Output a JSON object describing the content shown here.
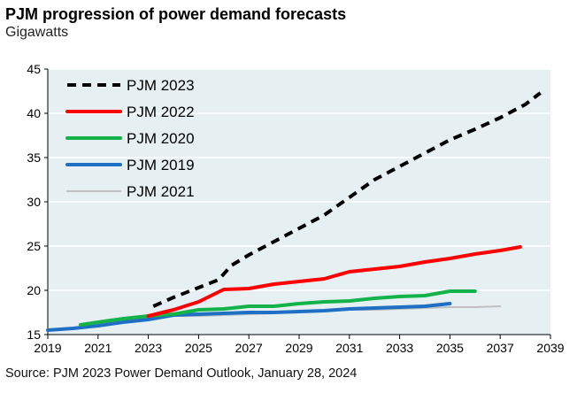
{
  "chart_data": {
    "type": "line",
    "title": "PJM progression of power demand forecasts",
    "subtitle": "Gigawatts",
    "source": "Source: PJM 2023 Power Demand Outlook, January 28, 2024",
    "xlabel": "",
    "ylabel": "Gigawatts",
    "xlim": [
      2019,
      2039
    ],
    "ylim": [
      15,
      45
    ],
    "xticks": [
      2019,
      2021,
      2023,
      2025,
      2027,
      2029,
      2031,
      2033,
      2035,
      2037,
      2039
    ],
    "yticks": [
      15,
      20,
      25,
      30,
      35,
      40,
      45
    ],
    "grid": true,
    "legend_position": "top-left",
    "background": "#e6f0f3",
    "series": [
      {
        "name": "PJM 2023",
        "color": "#000000",
        "dashed": true,
        "x": [
          2023.2,
          2024,
          2025,
          2025.8,
          2026.3,
          2027,
          2028,
          2029,
          2030,
          2031,
          2032,
          2033,
          2034,
          2035,
          2036,
          2037,
          2038,
          2038.6
        ],
        "y": [
          18.2,
          19.2,
          20.3,
          21.2,
          22.8,
          24,
          25.5,
          27,
          28.5,
          30.5,
          32.5,
          34,
          35.5,
          37,
          38.2,
          39.5,
          41,
          42.3
        ]
      },
      {
        "name": "PJM 2022",
        "color": "#ff0000",
        "x": [
          2023,
          2024,
          2025,
          2026,
          2027,
          2028,
          2029,
          2030,
          2031,
          2032,
          2033,
          2034,
          2035,
          2036,
          2037,
          2037.8
        ],
        "y": [
          17.1,
          17.8,
          18.7,
          20.1,
          20.2,
          20.7,
          21,
          21.3,
          22.1,
          22.4,
          22.7,
          23.2,
          23.6,
          24.1,
          24.5,
          24.9
        ]
      },
      {
        "name": "PJM 2020",
        "color": "#13b34a",
        "x": [
          2020.3,
          2021,
          2022,
          2023,
          2024,
          2025,
          2026,
          2027,
          2028,
          2029,
          2030,
          2031,
          2032,
          2033,
          2034,
          2035,
          2036
        ],
        "y": [
          16.1,
          16.4,
          16.8,
          17.1,
          17.3,
          17.8,
          17.9,
          18.2,
          18.2,
          18.5,
          18.7,
          18.8,
          19.1,
          19.3,
          19.4,
          19.9,
          19.9
        ]
      },
      {
        "name": "PJM 2019",
        "color": "#1f6fc5",
        "x": [
          2019,
          2020,
          2021,
          2022,
          2023,
          2024,
          2025,
          2026,
          2027,
          2028,
          2029,
          2030,
          2031,
          2032,
          2033,
          2034,
          2035
        ],
        "y": [
          15.5,
          15.7,
          16,
          16.4,
          16.7,
          17.2,
          17.3,
          17.4,
          17.5,
          17.5,
          17.6,
          17.7,
          17.9,
          18,
          18.1,
          18.2,
          18.5
        ]
      },
      {
        "name": "PJM 2021",
        "color": "#bfbfbf",
        "x": [
          2021,
          2022,
          2023,
          2024,
          2025,
          2026,
          2027,
          2028,
          2029,
          2030,
          2031,
          2032,
          2033,
          2034,
          2035,
          2036,
          2037
        ],
        "y": [
          15.9,
          16.5,
          16.9,
          17.1,
          17.1,
          17.2,
          17.3,
          17.4,
          17.6,
          17.7,
          17.8,
          17.8,
          17.9,
          18,
          18.1,
          18.1,
          18.2
        ]
      }
    ]
  }
}
